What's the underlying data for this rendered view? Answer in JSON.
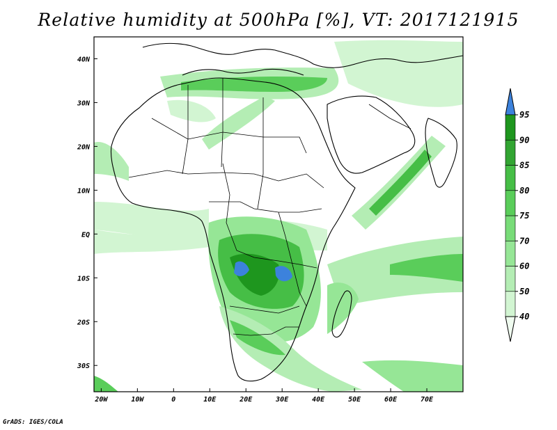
{
  "title": "Relative humidity at 500hPa [%], VT: 2017121915",
  "footer": "GrADS: IGES/COLA",
  "colors": {
    "rh_40": "#f0fcf0",
    "rh_50": "#d2f5d2",
    "rh_60": "#b4edb4",
    "rh_70": "#96e696",
    "rh_75": "#78dc78",
    "rh_80": "#5acd5a",
    "rh_85": "#46be46",
    "rh_90": "#32a532",
    "rh_95": "#1e961e",
    "rh_over": "#3c82dc"
  },
  "chart_data": {
    "type": "heatmap",
    "xlim": [
      -22,
      80
    ],
    "ylim": [
      -36,
      45
    ],
    "x_ticks": [
      "20W",
      "10W",
      "0",
      "10E",
      "20E",
      "30E",
      "40E",
      "50E",
      "60E",
      "70E"
    ],
    "y_ticks": [
      "40N",
      "30N",
      "20N",
      "10N",
      "EQ",
      "10S",
      "20S",
      "30S"
    ],
    "colorbar": {
      "levels": [
        "40",
        "50",
        "60",
        "70",
        "75",
        "80",
        "85",
        "90",
        "95"
      ]
    }
  }
}
